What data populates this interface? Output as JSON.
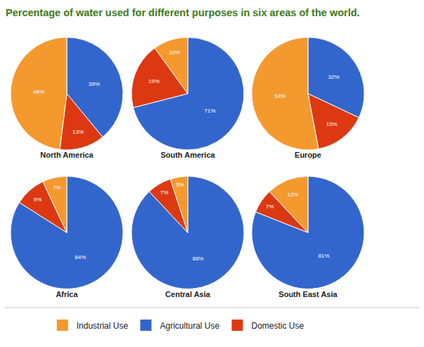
{
  "title": "Percentage of water used for different purposes in six areas of the world.",
  "chart_data": [
    {
      "type": "pie",
      "title": "North America",
      "categories": [
        "Agricultural Use",
        "Domestic Use",
        "Industrial Use"
      ],
      "values": [
        39,
        13,
        48
      ],
      "value_labels": [
        "39%",
        "13%",
        "48%"
      ],
      "colors": [
        "#3366cc",
        "#dc3912",
        "#f4992e"
      ],
      "data_labels": true,
      "legend": "bottom"
    },
    {
      "type": "pie",
      "title": "South America",
      "categories": [
        "Agricultural Use",
        "Domestic Use",
        "Industrial Use"
      ],
      "values": [
        71,
        19,
        10
      ],
      "value_labels": [
        "71%",
        "19%",
        "10%"
      ],
      "colors": [
        "#3366cc",
        "#dc3912",
        "#f4992e"
      ],
      "data_labels": true,
      "legend": "bottom"
    },
    {
      "type": "pie",
      "title": "Europe",
      "categories": [
        "Agricultural Use",
        "Domestic Use",
        "Industrial Use"
      ],
      "values": [
        32,
        15,
        53
      ],
      "value_labels": [
        "32%",
        "15%",
        "53%"
      ],
      "colors": [
        "#3366cc",
        "#dc3912",
        "#f4992e"
      ],
      "data_labels": true,
      "legend": "bottom"
    },
    {
      "type": "pie",
      "title": "Africa",
      "categories": [
        "Agricultural Use",
        "Domestic Use",
        "Industrial Use"
      ],
      "values": [
        84,
        9,
        7
      ],
      "value_labels": [
        "84%",
        "9%",
        "7%"
      ],
      "colors": [
        "#3366cc",
        "#dc3912",
        "#f4992e"
      ],
      "data_labels": true,
      "legend": "bottom"
    },
    {
      "type": "pie",
      "title": "Central Asia",
      "categories": [
        "Agricultural Use",
        "Domestic Use",
        "Industrial Use"
      ],
      "values": [
        88,
        7,
        5
      ],
      "value_labels": [
        "88%",
        "7%",
        "5%"
      ],
      "colors": [
        "#3366cc",
        "#dc3912",
        "#f4992e"
      ],
      "data_labels": true,
      "legend": "bottom"
    },
    {
      "type": "pie",
      "title": "South East Asia",
      "categories": [
        "Agricultural Use",
        "Domestic Use",
        "Industrial Use"
      ],
      "values": [
        81,
        7,
        12
      ],
      "value_labels": [
        "81%",
        "7%",
        "12%"
      ],
      "colors": [
        "#3366cc",
        "#dc3912",
        "#f4992e"
      ],
      "data_labels": true,
      "legend": "bottom"
    }
  ]
}
